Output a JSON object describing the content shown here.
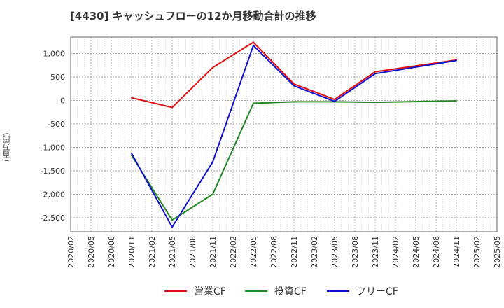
{
  "chart_data": {
    "type": "line",
    "title": "[4430]  キャッシュフローの12か月移動合計の推移",
    "ylabel": "(百万円)",
    "xlabel": "",
    "ylim": [
      -2800,
      1350
    ],
    "y_ticks": [
      1000,
      500,
      0,
      -500,
      -1000,
      -1500,
      -2000,
      -2500
    ],
    "y_tick_labels": [
      "1,000",
      "500",
      "0",
      "-500",
      "-1,000",
      "-1,500",
      "-2,000",
      "-2,500"
    ],
    "x_ticks": [
      "2020/02",
      "2020/05",
      "2020/08",
      "2020/11",
      "2021/02",
      "2021/05",
      "2021/08",
      "2021/11",
      "2022/02",
      "2022/05",
      "2022/08",
      "2022/11",
      "2023/02",
      "2023/05",
      "2023/08",
      "2023/11",
      "2024/02",
      "2024/05",
      "2024/08",
      "2024/11",
      "2025/02",
      "2025/05"
    ],
    "grid": true,
    "legend_position": "bottom",
    "series": [
      {
        "name": "営業CF",
        "color": "#dd1111",
        "x": [
          "2020/11",
          "2021/05",
          "2021/11",
          "2022/05",
          "2022/11",
          "2023/05",
          "2023/11",
          "2024/11"
        ],
        "values": [
          55,
          -150,
          700,
          1240,
          350,
          20,
          610,
          860
        ]
      },
      {
        "name": "投資CF",
        "color": "#228822",
        "x": [
          "2020/11",
          "2021/05",
          "2021/11",
          "2022/05",
          "2022/11",
          "2023/05",
          "2023/11",
          "2024/11"
        ],
        "values": [
          -1170,
          -2550,
          -2000,
          -60,
          -30,
          -30,
          -40,
          -10
        ]
      },
      {
        "name": "フリーCF",
        "color": "#1111cc",
        "x": [
          "2020/11",
          "2021/05",
          "2021/11",
          "2022/05",
          "2022/11",
          "2023/05",
          "2023/11",
          "2024/11"
        ],
        "values": [
          -1130,
          -2700,
          -1310,
          1170,
          310,
          -20,
          570,
          850
        ]
      }
    ]
  }
}
